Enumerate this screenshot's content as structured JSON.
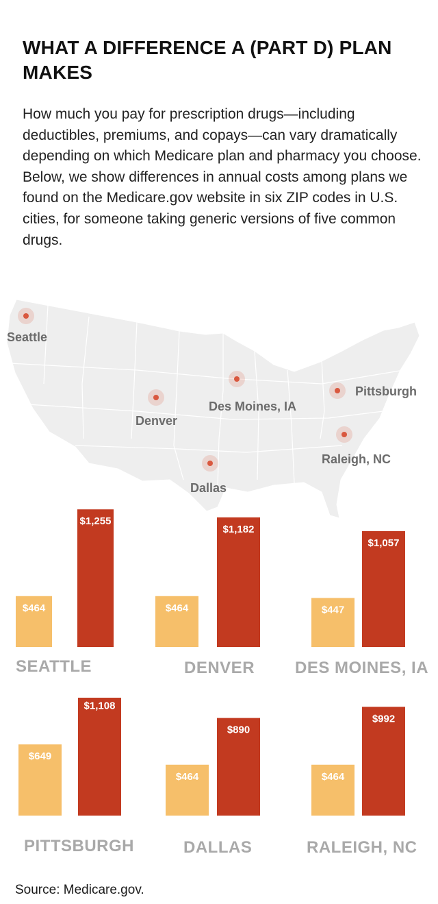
{
  "title": "WHAT A DIFFERENCE A (PART D) PLAN MAKES",
  "intro": "How much you pay for prescription drugs—including deductibles, premiums, and copays—can vary dramatically depending on which Medicare plan and pharmacy you choose. Below, we show differences in annual costs among plans we found on the Medicare.gov website in six ZIP codes in U.S. cities, for someone taking generic versions of five common drugs.",
  "map": {
    "cities": [
      {
        "name": "Seattle"
      },
      {
        "name": "Denver"
      },
      {
        "name": "Des Moines, IA"
      },
      {
        "name": "Pittsburgh"
      },
      {
        "name": "Dallas"
      },
      {
        "name": "Raleigh, NC"
      }
    ]
  },
  "colors": {
    "low_bar": "#f6bf6a",
    "high_bar": "#c23a20",
    "marker": "#d9583f",
    "map_fill": "#eeeeee"
  },
  "chart_data": [
    {
      "type": "bar",
      "title": "SEATTLE",
      "categories": [
        "",
        ""
      ],
      "values": [
        464,
        1255
      ],
      "data_labels": [
        "$464",
        "$1,255"
      ]
    },
    {
      "type": "bar",
      "title": "DENVER",
      "categories": [
        "",
        ""
      ],
      "values": [
        464,
        1182
      ],
      "data_labels": [
        "$464",
        "$1,182"
      ]
    },
    {
      "type": "bar",
      "title": "DES MOINES, IA",
      "categories": [
        "",
        ""
      ],
      "values": [
        447,
        1057
      ],
      "data_labels": [
        "$447",
        "$1,057"
      ]
    },
    {
      "type": "bar",
      "title": "PITTSBURGH",
      "categories": [
        "",
        ""
      ],
      "values": [
        649,
        1108
      ],
      "data_labels": [
        "$649",
        "$1,108"
      ]
    },
    {
      "type": "bar",
      "title": "DALLAS",
      "categories": [
        "",
        ""
      ],
      "values": [
        464,
        890
      ],
      "data_labels": [
        "$464",
        "$890"
      ]
    },
    {
      "type": "bar",
      "title": "RALEIGH, NC",
      "categories": [
        "",
        ""
      ],
      "values": [
        464,
        992
      ],
      "data_labels": [
        "$464",
        "$992"
      ]
    }
  ],
  "source": "Source: Medicare.gov."
}
